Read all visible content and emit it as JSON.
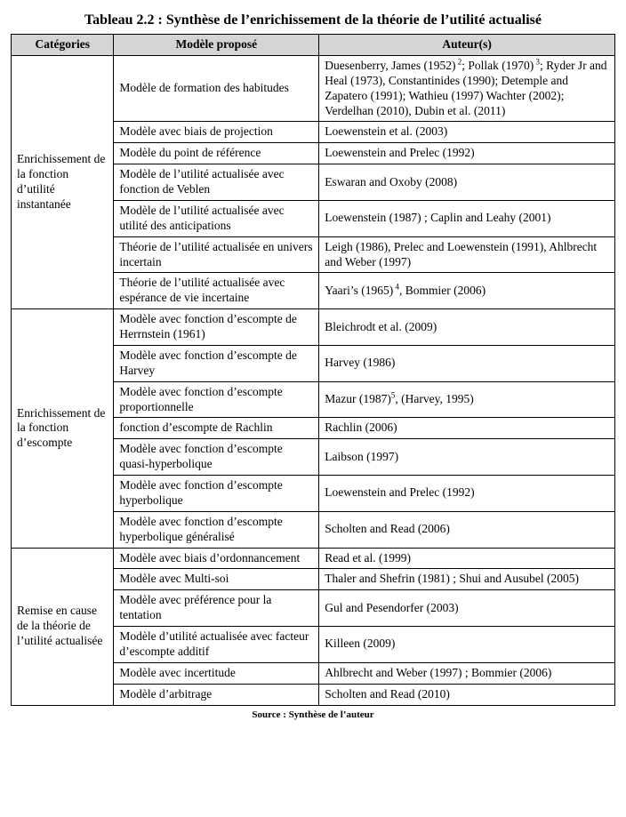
{
  "title": "Tableau  2.2 : Synthèse de l’enrichissement de la théorie de l’utilité actualisé",
  "source": "Source : Synthèse de l’auteur",
  "headers": {
    "categories": "Catégories",
    "modele": "Modèle proposé",
    "auteurs": "Auteur(s)"
  },
  "sections": [
    {
      "category": "Enrichissement de la fonction d’utilité instantanée",
      "rows": [
        {
          "modele": "Modèle de formation des habitudes",
          "auteurs_html": "Duesenberry, James (1952)<sup> 2</sup>; Pollak (1970)<sup> 3</sup>; Ryder Jr and Heal (1973), Constantinides (1990); Detemple and Zapatero (1991); Wathieu (1997) Wachter (2002); Verdelhan (2010), Dubin et al. (2011)"
        },
        {
          "modele": "Modèle avec biais de projection",
          "auteurs_html": "Loewenstein et al. (2003)"
        },
        {
          "modele": "Modèle du point de référence",
          "auteurs_html": "Loewenstein and Prelec (1992)"
        },
        {
          "modele": "Modèle de l’utilité actualisée avec fonction de Veblen",
          "auteurs_html": "Eswaran and Oxoby (2008)"
        },
        {
          "modele": "Modèle de l’utilité actualisée avec utilité des anticipations",
          "auteurs_html": "Loewenstein (1987) ; Caplin and Leahy (2001)"
        },
        {
          "modele": "Théorie de l’utilité actualisée en univers incertain",
          "auteurs_html": "Leigh (1986), Prelec and Loewenstein (1991), Ahlbrecht and Weber (1997)"
        },
        {
          "modele": "Théorie de l’utilité actualisée avec espérance de vie incertaine",
          "auteurs_html": "Yaari’s (1965)<sup> 4</sup>, Bommier (2006)"
        }
      ]
    },
    {
      "category": "Enrichissement de la fonction d’escompte",
      "rows": [
        {
          "modele": "Modèle avec fonction d’escompte de Herrnstein (1961)",
          "auteurs_html": "Bleichrodt et al. (2009)"
        },
        {
          "modele": "Modèle avec fonction d’escompte de Harvey",
          "auteurs_html": "Harvey (1986)"
        },
        {
          "modele": "Modèle avec fonction d’escompte proportionnelle",
          "auteurs_html": "Mazur (1987)<sup>5</sup>, (Harvey, 1995)"
        },
        {
          "modele": "fonction d’escompte de Rachlin",
          "auteurs_html": "Rachlin (2006)"
        },
        {
          "modele": "Modèle avec fonction d’escompte quasi-hyperbolique",
          "auteurs_html": "Laibson (1997)"
        },
        {
          "modele": "Modèle avec fonction d’escompte hyperbolique",
          "auteurs_html": "Loewenstein and Prelec (1992)"
        },
        {
          "modele": "Modèle avec fonction d’escompte hyperbolique généralisé",
          "auteurs_html": "Scholten and Read (2006)"
        }
      ]
    },
    {
      "category": "Remise en cause de la théorie de l’utilité actualisée",
      "rows": [
        {
          "modele": "Modèle avec biais d’ordonnancement",
          "auteurs_html": "Read et al. (1999)"
        },
        {
          "modele": "Modèle avec Multi-soi",
          "auteurs_html": "Thaler and Shefrin (1981) ; Shui and Ausubel (2005)"
        },
        {
          "modele": "Modèle avec préférence pour la tentation",
          "auteurs_html": "Gul and Pesendorfer (2003)"
        },
        {
          "modele": "Modèle d’utilité actualisée avec facteur d’escompte additif",
          "auteurs_html": "Killeen (2009)"
        },
        {
          "modele": "Modèle avec incertitude",
          "auteurs_html": "Ahlbrecht and Weber (1997) ; Bommier (2006)"
        },
        {
          "modele": "Modèle d’arbitrage",
          "auteurs_html": "Scholten and Read (2010)"
        }
      ]
    }
  ]
}
